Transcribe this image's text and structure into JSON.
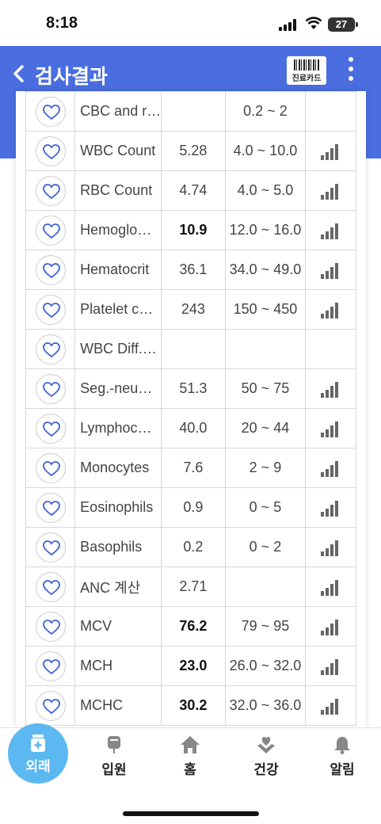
{
  "status_bar": {
    "time": "8:18",
    "battery": "27"
  },
  "header": {
    "title": "검사결과",
    "card_button_label": "진료카드",
    "colors": {
      "primary": "#4a6ee0"
    }
  },
  "results": [
    {
      "name": "CBC and r…",
      "value": "",
      "range": "0.2 ~ 2",
      "bold": false,
      "chart": false
    },
    {
      "name": "WBC Count",
      "value": "5.28",
      "range": "4.0 ~ 10.0",
      "bold": false,
      "chart": true
    },
    {
      "name": "RBC Count",
      "value": "4.74",
      "range": "4.0 ~ 5.0",
      "bold": false,
      "chart": true
    },
    {
      "name": "Hemoglo…",
      "value": "10.9",
      "range": "12.0 ~ 16.0",
      "bold": true,
      "chart": true
    },
    {
      "name": "Hematocrit",
      "value": "36.1",
      "range": "34.0 ~ 49.0",
      "bold": false,
      "chart": true
    },
    {
      "name": "Platelet c…",
      "value": "243",
      "range": "150 ~ 450",
      "bold": false,
      "chart": true
    },
    {
      "name": "WBC Diff.…",
      "value": "",
      "range": "",
      "bold": false,
      "chart": false
    },
    {
      "name": "Seg.-neu…",
      "value": "51.3",
      "range": "50 ~ 75",
      "bold": false,
      "chart": true
    },
    {
      "name": "Lymphoc…",
      "value": "40.0",
      "range": "20 ~ 44",
      "bold": false,
      "chart": true
    },
    {
      "name": "Monocytes",
      "value": "7.6",
      "range": "2 ~ 9",
      "bold": false,
      "chart": true
    },
    {
      "name": "Eosinophils",
      "value": "0.9",
      "range": "0 ~ 5",
      "bold": false,
      "chart": true
    },
    {
      "name": "Basophils",
      "value": "0.2",
      "range": "0 ~ 2",
      "bold": false,
      "chart": true
    },
    {
      "name": "ANC 계산",
      "value": "2.71",
      "range": "",
      "bold": false,
      "chart": true
    },
    {
      "name": "MCV",
      "value": "76.2",
      "range": "79 ~ 95",
      "bold": true,
      "chart": true
    },
    {
      "name": "MCH",
      "value": "23.0",
      "range": "26.0 ~ 32.0",
      "bold": true,
      "chart": true
    },
    {
      "name": "MCHC",
      "value": "30.2",
      "range": "32.0 ~ 36.0",
      "bold": true,
      "chart": true
    }
  ],
  "tabs": [
    {
      "label": "외래",
      "icon": "medicine-bottle-icon",
      "active": true
    },
    {
      "label": "입원",
      "icon": "iv-bag-icon",
      "active": false
    },
    {
      "label": "홈",
      "icon": "home-icon",
      "active": false
    },
    {
      "label": "건강",
      "icon": "heart-hands-icon",
      "active": false
    },
    {
      "label": "알림",
      "icon": "bell-icon",
      "active": false
    }
  ]
}
